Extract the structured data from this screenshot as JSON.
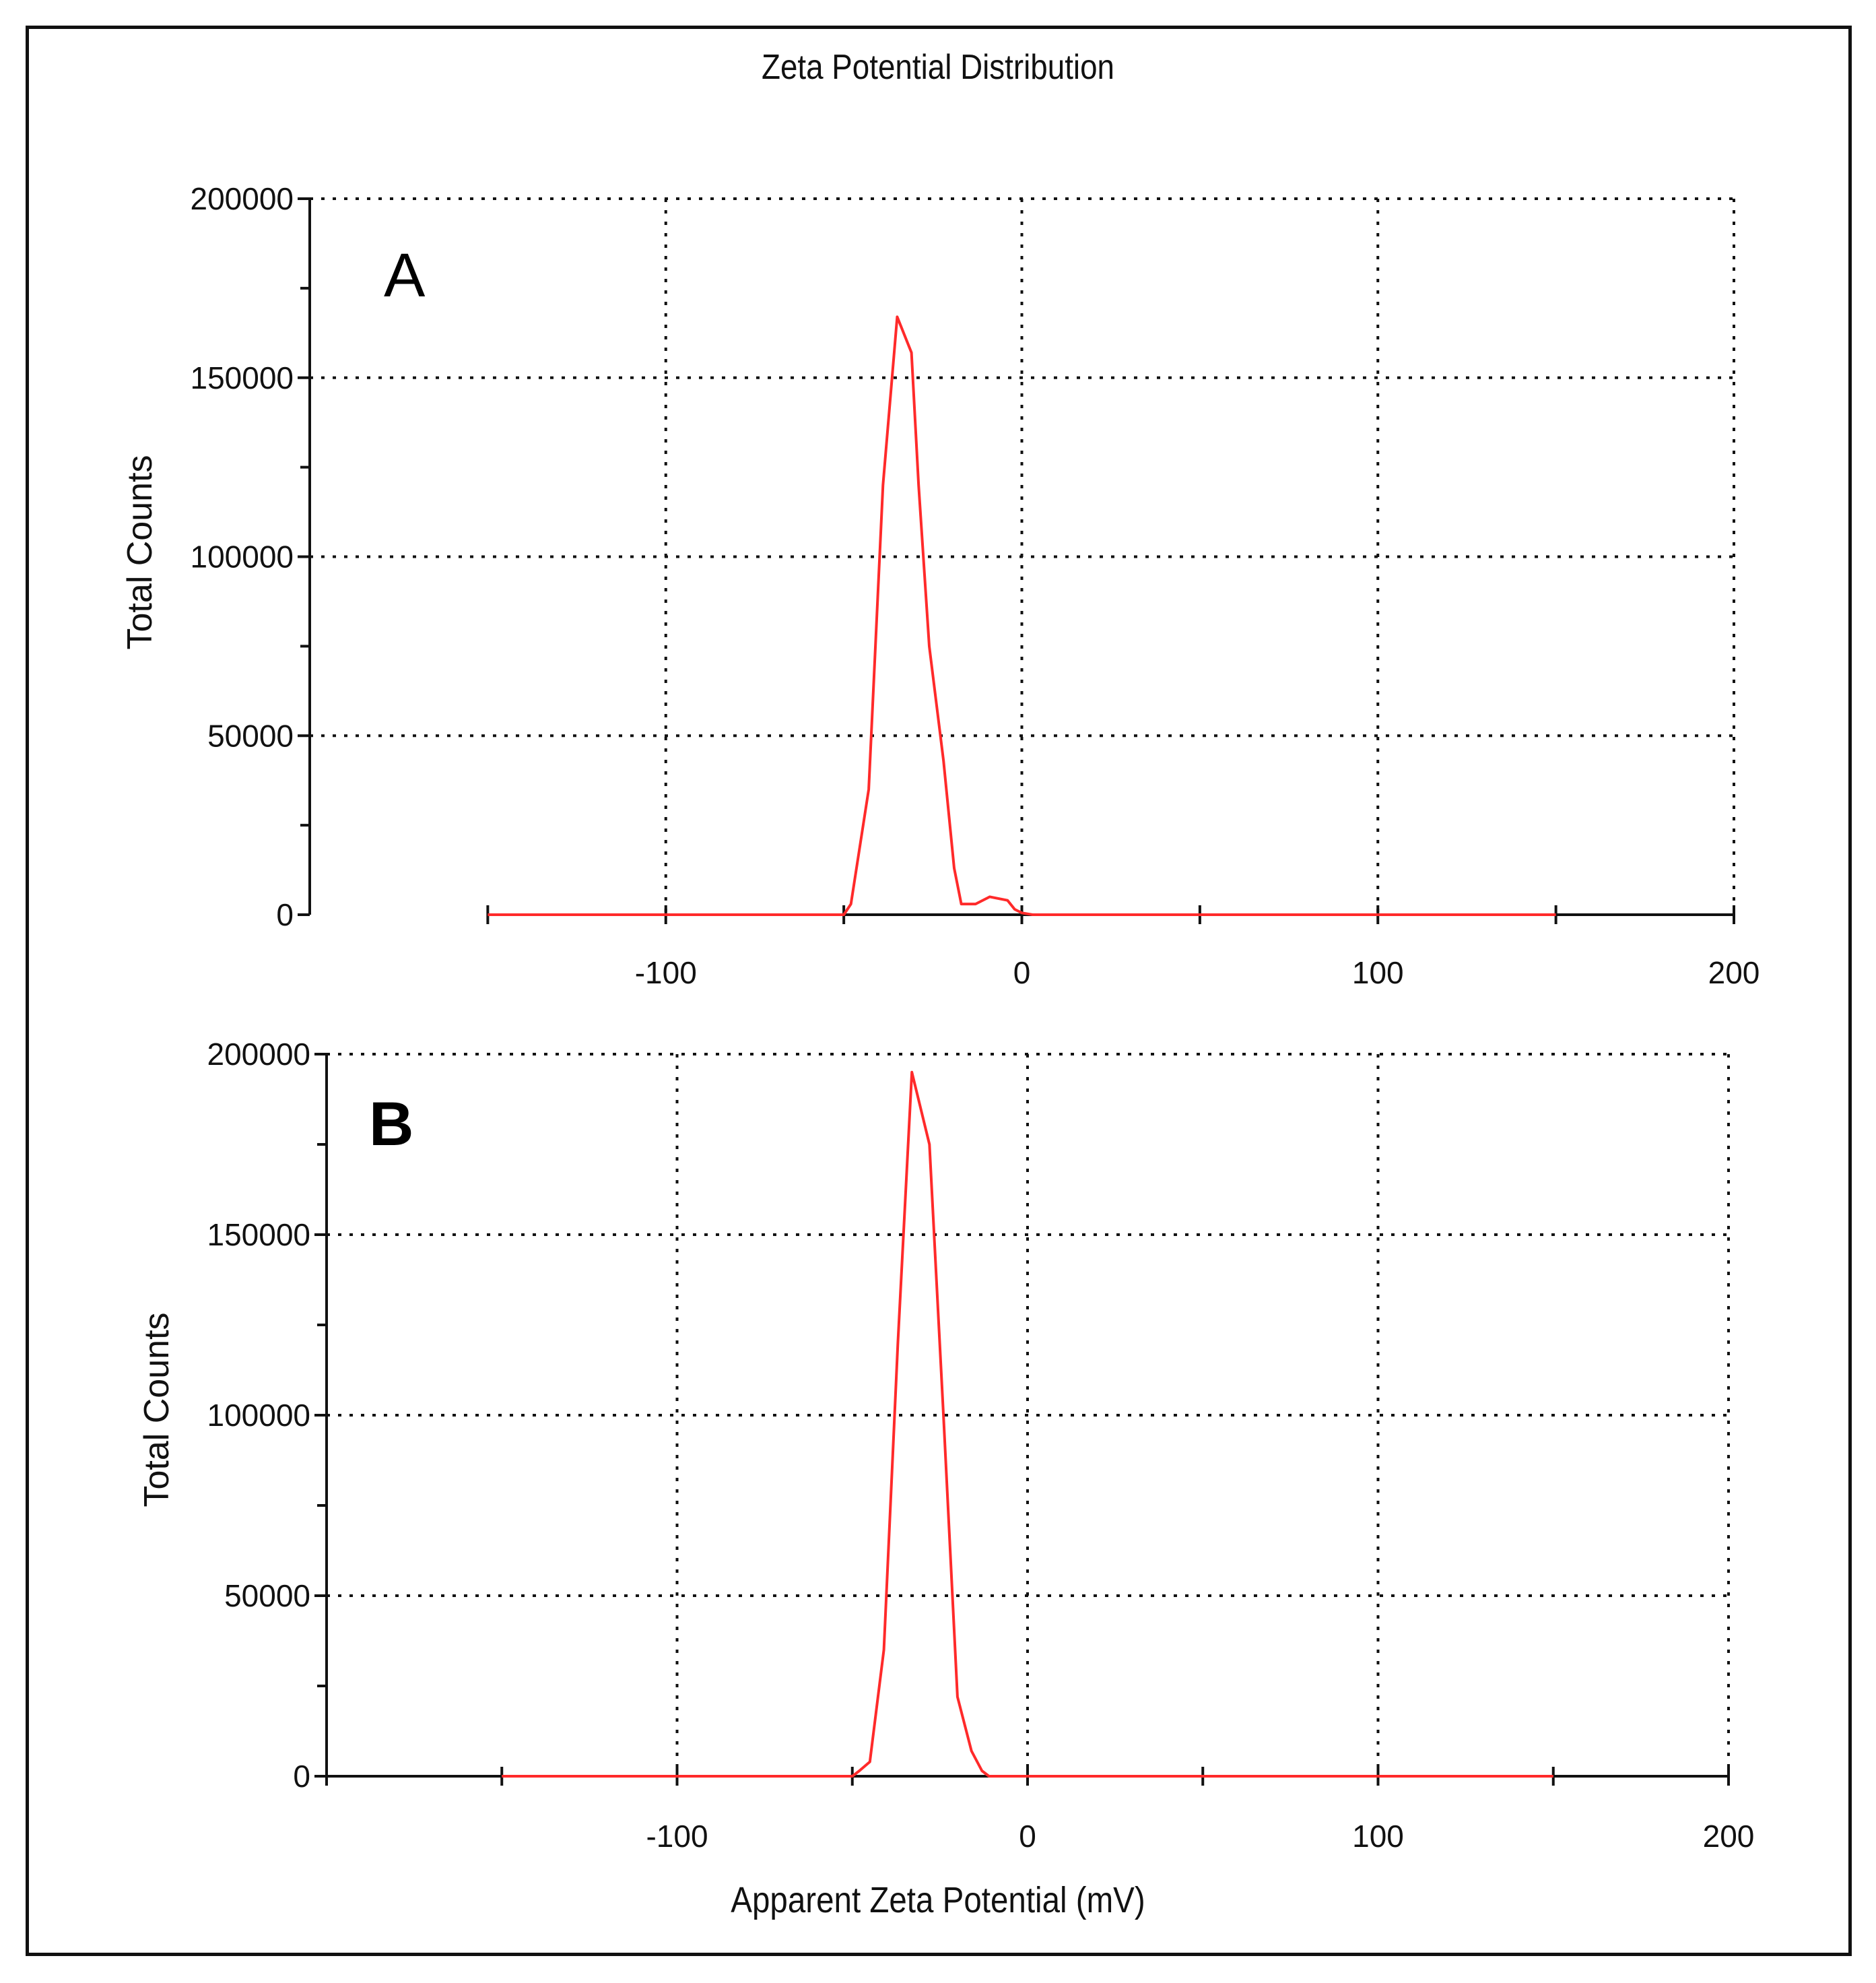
{
  "figure": {
    "title": "Zeta Potential Distribution",
    "xlabel": "Apparent Zeta Potential (mV)"
  },
  "colors": {
    "series": "#ff2a2a",
    "axis": "#111111",
    "grid": "#111111",
    "frame": "#111111"
  },
  "chart_data": [
    {
      "type": "line",
      "panel_label": "A",
      "title": "Zeta Potential Distribution",
      "xlabel": "",
      "ylabel": "Total Counts",
      "xlim": [
        -200,
        200
      ],
      "ylim": [
        0,
        200000
      ],
      "xticks": [
        -100,
        0,
        100,
        200
      ],
      "xtick_labels": [
        "-100",
        "0",
        "100",
        "200"
      ],
      "yticks": [
        0,
        50000,
        100000,
        150000,
        200000
      ],
      "ytick_labels": [
        "0",
        "50000",
        "100000",
        "150000",
        "200000"
      ],
      "grid": true,
      "series": [
        {
          "name": "Total Counts",
          "x": [
            -150,
            -50,
            -48,
            -43,
            -39,
            -35,
            -31,
            -29,
            -26,
            -22,
            -19,
            -17,
            -13,
            -9,
            -4,
            -2,
            0,
            3,
            150
          ],
          "y": [
            0,
            0,
            3000,
            35000,
            120000,
            167000,
            157000,
            120000,
            75000,
            43000,
            13000,
            3000,
            3000,
            5000,
            4000,
            1500,
            500,
            0,
            0
          ]
        }
      ]
    },
    {
      "type": "line",
      "panel_label": "B",
      "title": "",
      "xlabel": "Apparent Zeta Potential (mV)",
      "ylabel": "Total Counts",
      "xlim": [
        -200,
        200
      ],
      "ylim": [
        0,
        200000
      ],
      "xticks": [
        -100,
        0,
        100,
        200
      ],
      "xtick_labels": [
        "-100",
        "0",
        "100",
        "200"
      ],
      "yticks": [
        0,
        50000,
        100000,
        150000,
        200000
      ],
      "ytick_labels": [
        "0",
        "50000",
        "100000",
        "150000",
        "200000"
      ],
      "grid": true,
      "series": [
        {
          "name": "Total Counts",
          "x": [
            -150,
            -50,
            -48,
            -45,
            -41,
            -37,
            -33,
            -28,
            -24,
            -20,
            -16,
            -13,
            -11,
            150
          ],
          "y": [
            0,
            0,
            1500,
            4000,
            35000,
            120000,
            195000,
            175000,
            100000,
            22000,
            7000,
            1500,
            0,
            0
          ]
        }
      ]
    }
  ]
}
